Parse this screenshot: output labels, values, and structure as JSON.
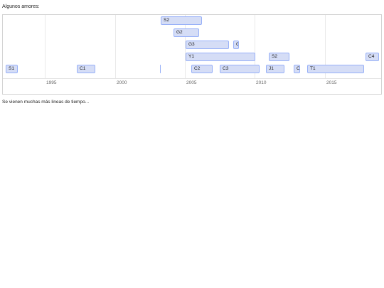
{
  "intro_text": "Algunos amores:",
  "footer_text": "Se vienen muchas más lineas de tiempo...",
  "axis": {
    "ticks": [
      {
        "label": "1995"
      },
      {
        "label": "2000"
      },
      {
        "label": "2005"
      },
      {
        "label": "2010"
      },
      {
        "label": "2015"
      }
    ]
  },
  "items": [
    {
      "label": "S2"
    },
    {
      "label": "G2"
    },
    {
      "label": "G3"
    },
    {
      "label": "G"
    },
    {
      "label": "Y1"
    },
    {
      "label": "S2"
    },
    {
      "label": "C4"
    },
    {
      "label": "S1"
    },
    {
      "label": "C1"
    },
    {
      "label": ""
    },
    {
      "label": "C2"
    },
    {
      "label": "C3"
    },
    {
      "label": "J1"
    },
    {
      "label": "C"
    },
    {
      "label": "T1"
    }
  ]
}
